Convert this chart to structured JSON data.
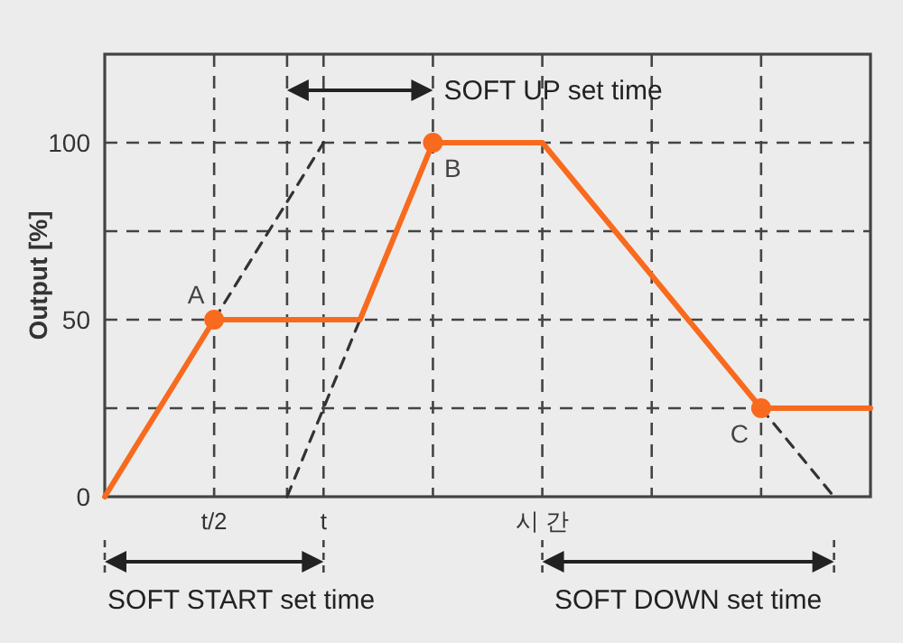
{
  "chart_data": {
    "type": "line",
    "ylabel": "Output [%]",
    "categories": [
      null,
      null,
      null,
      "t/2",
      null,
      null,
      "t",
      null,
      null,
      null,
      null,
      null,
      "시 간",
      null,
      null,
      null,
      null,
      null,
      null,
      null,
      null,
      null
    ],
    "ylim": [
      0,
      125
    ],
    "yticks": [
      0,
      {
        "value": 25,
        "label": null
      },
      50,
      {
        "value": 75,
        "label": null
      },
      100
    ],
    "grid": true,
    "series": [
      {
        "color": "#f86a1e",
        "line_style": "solid",
        "values": [
          0,
          16.7,
          33.3,
          50,
          50,
          50,
          50,
          50,
          75,
          100,
          100,
          100,
          100,
          87.5,
          75,
          62.5,
          50,
          37.5,
          25,
          25,
          25,
          25
        ]
      },
      {
        "type": "scatter",
        "color": "#f86a1e",
        "marker": "circle",
        "values": [
          null,
          null,
          null,
          50,
          null,
          null,
          null,
          null,
          null,
          100,
          null,
          null,
          null,
          null,
          null,
          null,
          null,
          null,
          25,
          null,
          null,
          null
        ]
      },
      {
        "color": "#333333",
        "line_style": "dashed",
        "values": [
          null,
          null,
          null,
          50,
          66.7,
          83.3,
          100,
          null,
          null,
          null,
          null,
          null,
          null,
          null,
          null,
          null,
          null,
          null,
          null,
          null,
          null,
          null
        ]
      },
      {
        "color": "#333333",
        "line_style": "dashed",
        "values": [
          null,
          null,
          null,
          null,
          null,
          0,
          25,
          50,
          75,
          100,
          null,
          null,
          null,
          null,
          null,
          null,
          null,
          null,
          null,
          null,
          null,
          null
        ]
      },
      {
        "color": "#333333",
        "line_style": "dashed",
        "values": [
          null,
          null,
          null,
          null,
          null,
          null,
          null,
          null,
          null,
          null,
          null,
          null,
          null,
          null,
          null,
          null,
          null,
          null,
          25,
          12.5,
          0,
          null
        ]
      }
    ],
    "annotations": [
      "A",
      "B",
      "C",
      "SOFT UP set time",
      "SOFT START set time",
      "SOFT DOWN set time"
    ]
  }
}
